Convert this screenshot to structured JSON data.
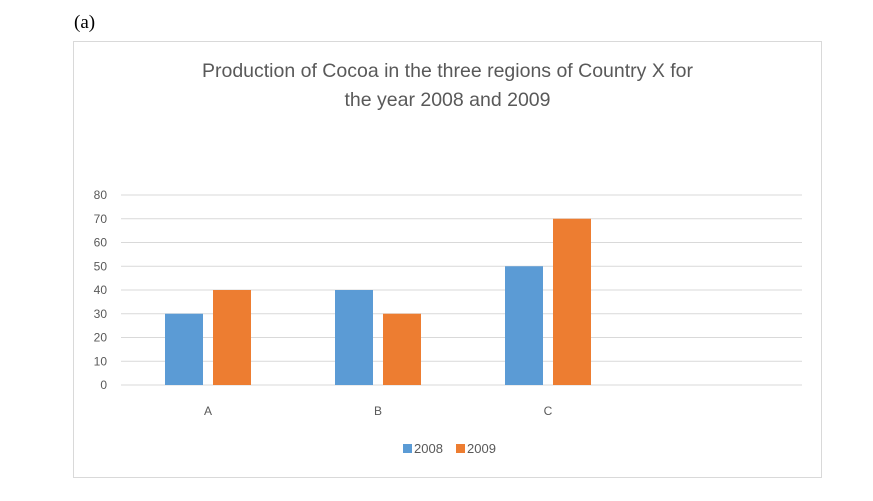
{
  "panel_label": "(a)",
  "chart_data": {
    "type": "bar",
    "title_lines": [
      "Production of Cocoa in the three regions of Country X for",
      "the year 2008 and 2009"
    ],
    "categories": [
      "A",
      "B",
      "C"
    ],
    "series": [
      {
        "name": "2008",
        "values": [
          30,
          40,
          50
        ],
        "color": "#5b9bd5"
      },
      {
        "name": "2009",
        "values": [
          40,
          30,
          70
        ],
        "color": "#ed7d31"
      }
    ],
    "xlabel": "",
    "ylabel": "",
    "ylim": [
      0,
      80
    ],
    "yticks": [
      0,
      10,
      20,
      30,
      40,
      50,
      60,
      70,
      80
    ],
    "grid": true,
    "gridline_color": "#d9d9d9",
    "legend_placement": "bottom"
  }
}
